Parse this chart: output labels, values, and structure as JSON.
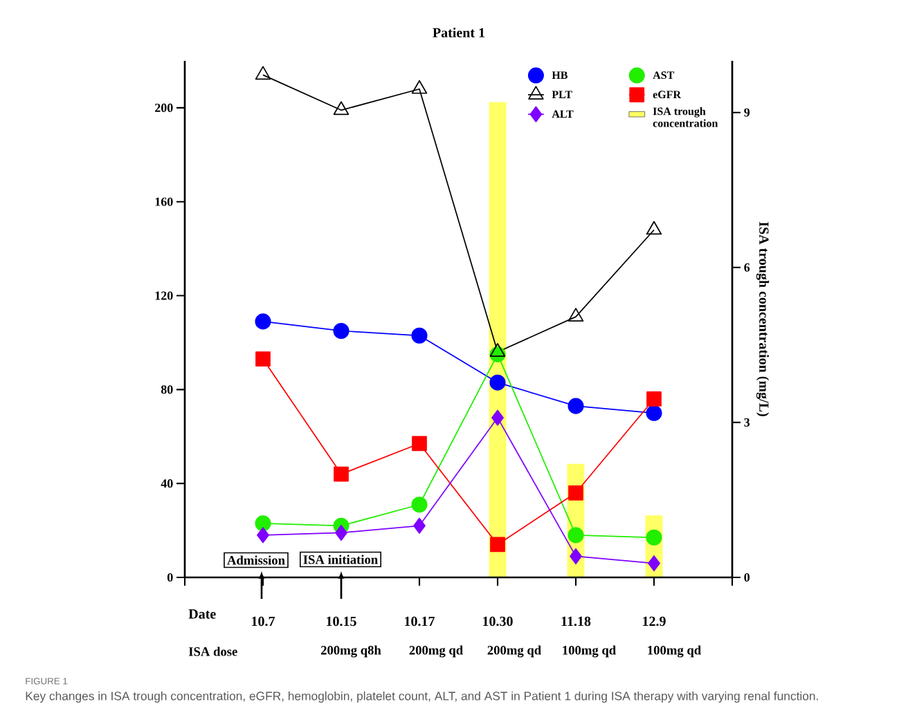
{
  "chart_data": {
    "type": "line",
    "title": "Patient 1",
    "y2label": "ISA trough concentration (mg/L)",
    "categories": [
      "10.7",
      "10.15",
      "10.17",
      "10.30",
      "11.18",
      "12.9"
    ],
    "series": [
      {
        "name": "HB",
        "color": "#0000ff",
        "marker": "circle",
        "values": [
          109,
          105,
          103,
          83,
          73,
          70
        ]
      },
      {
        "name": "AST",
        "color": "#22ee00",
        "marker": "circle",
        "values": [
          23,
          22,
          31,
          95,
          18,
          17
        ]
      },
      {
        "name": "PLT",
        "color": "#000000",
        "marker": "triangle",
        "values": [
          214,
          199,
          208,
          96,
          111,
          148
        ]
      },
      {
        "name": "eGFR",
        "color": "#ff0000",
        "marker": "square",
        "values": [
          93,
          44,
          57,
          14,
          36,
          76
        ]
      },
      {
        "name": "ALT",
        "color": "#7f00ff",
        "marker": "diamond",
        "values": [
          18,
          19,
          22,
          68,
          9,
          6
        ]
      },
      {
        "name": "ISA trough concentration",
        "type": "bar",
        "axis": "y2",
        "color": "#ffff66",
        "values": [
          null,
          null,
          null,
          9.2,
          2.2,
          1.2
        ]
      }
    ],
    "ylim": [
      0,
      220
    ],
    "yticks": [
      0,
      40,
      80,
      120,
      160,
      200
    ],
    "y2lim": [
      0,
      10
    ],
    "y2ticks": [
      0,
      3,
      6,
      9
    ],
    "legend": "top right",
    "line_style": "solid",
    "annotations": [
      "Admission",
      "ISA initiation",
      "Date",
      "ISA dose",
      "200mg q8h",
      "200mg qd",
      "200mg qd",
      "100mg qd",
      "100mg qd",
      "FIGURE 1",
      "Key changes in ISA trough concentration, eGFR, hemoglobin, platelet count, ALT, and AST in Patient 1 during ISA therapy with varying renal function."
    ]
  }
}
